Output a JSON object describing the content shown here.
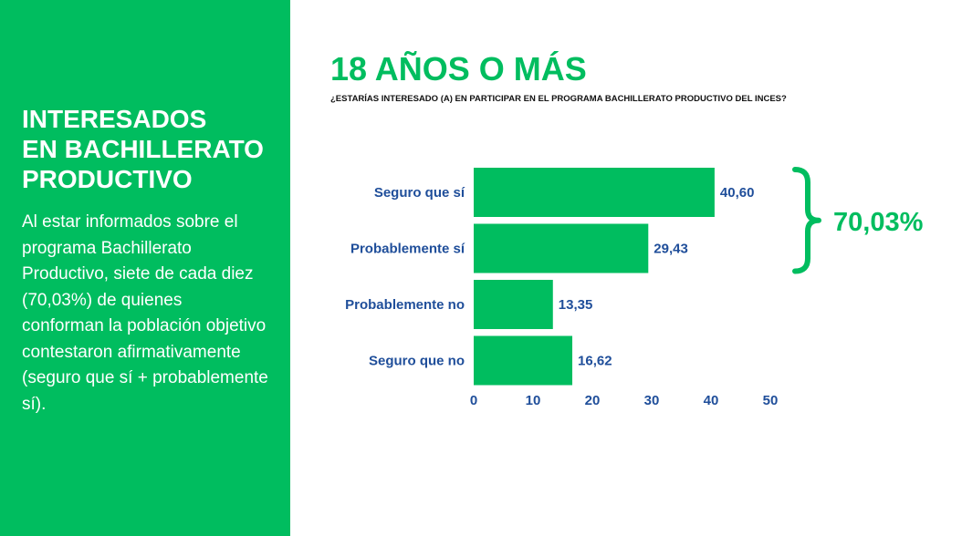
{
  "sidebar": {
    "heading_lines": [
      "INTERESADOS",
      "EN BACHILLERATO",
      "PRODUCTIVO"
    ],
    "body": "Al estar informados sobre el programa Bachillerato Productivo, siete de cada diez (70,03%) de quienes conforman la población objetivo contestaron afirmativamente (seguro que sí + probablemente sí)."
  },
  "header": {
    "title": "18 AÑOS O MÁS",
    "subtitle": "¿ESTARÍAS INTERESADO (A) EN PARTICIPAR EN EL PROGRAMA BACHILLERATO PRODUCTIVO DEL INCES?"
  },
  "colors": {
    "accent": "#00bd5f",
    "label_blue": "#1f4e9a"
  },
  "chart_data": {
    "type": "bar",
    "orientation": "horizontal",
    "categories": [
      "Seguro que sí",
      "Probablemente sí",
      "Probablemente no",
      "Seguro que no"
    ],
    "values": [
      40.6,
      29.43,
      13.35,
      16.62
    ],
    "value_labels": [
      "40,60",
      "29,43",
      "13,35",
      "16,62"
    ],
    "xlim": [
      0,
      50
    ],
    "x_ticks": [
      0,
      10,
      20,
      30,
      40,
      50
    ],
    "grid": false,
    "bracket": {
      "categories": [
        "Seguro que sí",
        "Probablemente sí"
      ],
      "label": "70,03%"
    }
  }
}
